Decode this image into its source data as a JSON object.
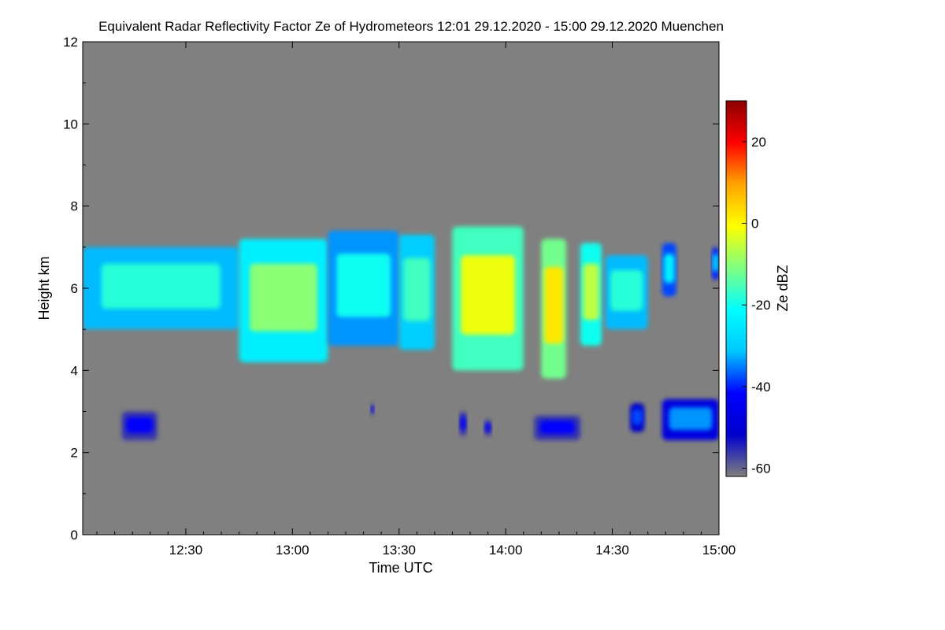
{
  "chart_data": {
    "type": "heatmap",
    "title": "Equivalent Radar Reflectivity Factor Ze of Hydrometeors   12:01 29.12.2020 - 15:00 29.12.2020 Muenchen",
    "xlabel": "Time UTC",
    "ylabel": "Height km",
    "x_range": [
      "12:01",
      "15:00"
    ],
    "x_ticks": [
      "12:30",
      "13:00",
      "13:30",
      "14:00",
      "14:30",
      "15:00"
    ],
    "y_range": [
      0,
      12
    ],
    "y_ticks": [
      "0",
      "2",
      "4",
      "6",
      "8",
      "10",
      "12"
    ],
    "background_color": "#808080",
    "colorbar": {
      "label": "Ze dBZ",
      "range": [
        -62,
        30
      ],
      "ticks": [
        "20",
        "0",
        "-20",
        "-40",
        "-60"
      ],
      "colormap": [
        "#7f7f7f",
        "#0000cd",
        "#0000ff",
        "#00c8ff",
        "#00ffff",
        "#80ff80",
        "#ffff00",
        "#ffa500",
        "#ff0000",
        "#8b0000"
      ]
    },
    "echoes": [
      {
        "t0": "12:01",
        "t1": "12:45",
        "base_km": 5.0,
        "top_km": 7.0,
        "ze_dbz": -18
      },
      {
        "t0": "12:45",
        "t1": "13:10",
        "base_km": 4.2,
        "top_km": 7.2,
        "ze_dbz": -10
      },
      {
        "t0": "13:10",
        "t1": "13:30",
        "base_km": 4.6,
        "top_km": 7.4,
        "ze_dbz": -20
      },
      {
        "t0": "13:30",
        "t1": "13:40",
        "base_km": 4.5,
        "top_km": 7.3,
        "ze_dbz": -16
      },
      {
        "t0": "13:45",
        "t1": "14:05",
        "base_km": 4.0,
        "top_km": 7.5,
        "ze_dbz": -2
      },
      {
        "t0": "14:10",
        "t1": "14:17",
        "base_km": 3.8,
        "top_km": 7.2,
        "ze_dbz": 2
      },
      {
        "t0": "14:21",
        "t1": "14:27",
        "base_km": 4.6,
        "top_km": 7.1,
        "ze_dbz": -6
      },
      {
        "t0": "14:28",
        "t1": "14:40",
        "base_km": 5.0,
        "top_km": 6.8,
        "ze_dbz": -18
      },
      {
        "t0": "14:44",
        "t1": "14:48",
        "base_km": 5.8,
        "top_km": 7.1,
        "ze_dbz": -24
      },
      {
        "t0": "14:58",
        "t1": "15:00",
        "base_km": 6.2,
        "top_km": 7.0,
        "ze_dbz": -26
      },
      {
        "t0": "12:12",
        "t1": "12:22",
        "base_km": 2.3,
        "top_km": 3.0,
        "ze_dbz": -42
      },
      {
        "t0": "13:22",
        "t1": "13:23",
        "base_km": 2.9,
        "top_km": 3.2,
        "ze_dbz": -42
      },
      {
        "t0": "13:47",
        "t1": "13:49",
        "base_km": 2.4,
        "top_km": 3.0,
        "ze_dbz": -42
      },
      {
        "t0": "13:54",
        "t1": "13:56",
        "base_km": 2.4,
        "top_km": 2.8,
        "ze_dbz": -42
      },
      {
        "t0": "14:08",
        "t1": "14:21",
        "base_km": 2.3,
        "top_km": 2.9,
        "ze_dbz": -42
      },
      {
        "t0": "14:35",
        "t1": "14:39",
        "base_km": 2.5,
        "top_km": 3.2,
        "ze_dbz": -38
      },
      {
        "t0": "14:44",
        "t1": "15:00",
        "base_km": 2.3,
        "top_km": 3.3,
        "ze_dbz": -34
      }
    ]
  }
}
